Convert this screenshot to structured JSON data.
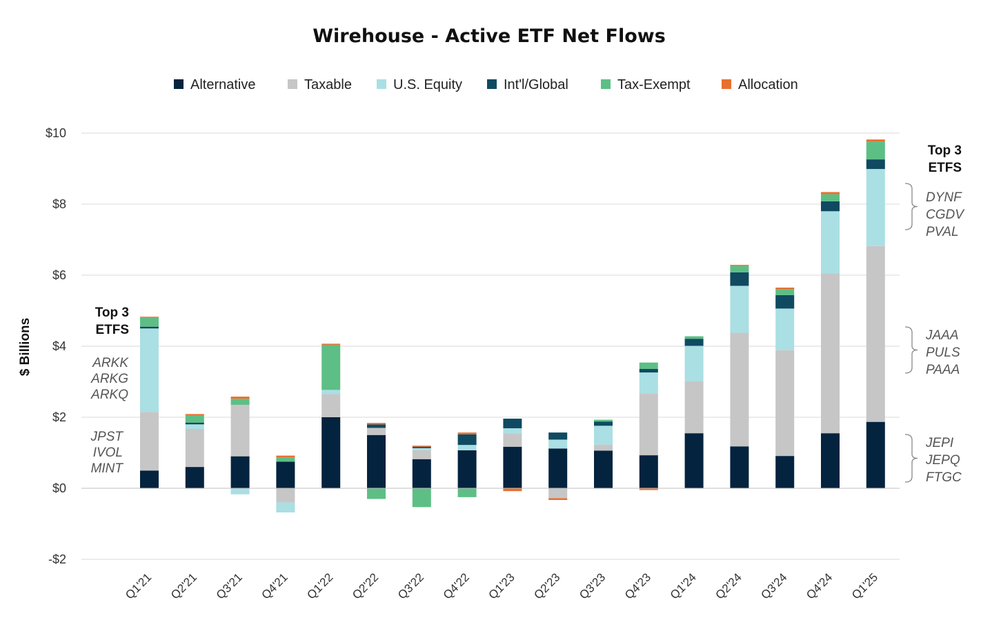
{
  "chart_data": {
    "type": "bar",
    "stacked": true,
    "title": "Wirehouse - Active ETF Net Flows",
    "ylabel": "$ Billions",
    "xlabel": "",
    "ylim": [
      -2,
      10
    ],
    "yticks": [
      -2,
      0,
      2,
      4,
      6,
      8,
      10
    ],
    "ytick_labels": [
      "-$2",
      "$0",
      "$2",
      "$4",
      "$6",
      "$8",
      "$10"
    ],
    "grid": true,
    "legend_position": "top",
    "categories": [
      "Q1'21",
      "Q2'21",
      "Q3'21",
      "Q4'21",
      "Q1'22",
      "Q2'22",
      "Q3'22",
      "Q4'22",
      "Q1'23",
      "Q2'23",
      "Q3'23",
      "Q4'23",
      "Q1'24",
      "Q2'24",
      "Q3'24",
      "Q4'24",
      "Q1'25"
    ],
    "series": [
      {
        "name": "Alternative",
        "color": "#04233e",
        "values": [
          0.5,
          0.6,
          0.9,
          0.75,
          2.0,
          1.5,
          0.82,
          1.07,
          1.17,
          1.12,
          1.06,
          0.93,
          1.55,
          1.18,
          0.91,
          1.55,
          1.87
        ]
      },
      {
        "name": "Taxable",
        "color": "#c6c6c6",
        "values": [
          1.65,
          1.07,
          1.45,
          -0.4,
          0.65,
          0.2,
          0.25,
          0.0,
          0.38,
          -0.28,
          0.17,
          1.73,
          1.46,
          3.2,
          2.98,
          4.5,
          4.95
        ]
      },
      {
        "name": "U.S. Equity",
        "color": "#aadfe4",
        "values": [
          2.35,
          0.13,
          -0.17,
          -0.28,
          0.12,
          0.0,
          0.06,
          0.15,
          0.14,
          0.25,
          0.53,
          0.6,
          1.0,
          1.32,
          1.17,
          1.75,
          2.17
        ]
      },
      {
        "name": "Int'l/Global",
        "color": "#0f4a61",
        "values": [
          0.05,
          0.05,
          0.0,
          0.0,
          0.0,
          0.1,
          0.04,
          0.3,
          0.27,
          0.2,
          0.12,
          0.1,
          0.2,
          0.38,
          0.38,
          0.28,
          0.27
        ]
      },
      {
        "name": "Tax-Exempt",
        "color": "#5dbf85",
        "values": [
          0.25,
          0.2,
          0.17,
          0.12,
          1.27,
          -0.3,
          -0.53,
          -0.25,
          0.0,
          0.0,
          0.05,
          0.18,
          0.07,
          0.18,
          0.17,
          0.2,
          0.5
        ]
      },
      {
        "name": "Allocation",
        "color": "#e8702f",
        "values": [
          0.03,
          0.04,
          0.06,
          0.05,
          0.03,
          0.04,
          0.03,
          0.05,
          -0.08,
          -0.05,
          0.0,
          -0.05,
          0.0,
          0.03,
          0.04,
          0.06,
          0.06
        ]
      }
    ],
    "annotations": {
      "left": {
        "heading": [
          "Top 3",
          "ETFS"
        ],
        "groups": [
          [
            "ARKK",
            "ARKG",
            "ARKQ"
          ],
          [
            "JPST",
            "IVOL",
            "MINT"
          ]
        ]
      },
      "right": {
        "heading": [
          "Top 3",
          "ETFS"
        ],
        "groups": [
          [
            "DYNF",
            "CGDV",
            "PVAL"
          ],
          [
            "JAAA",
            "PULS",
            "PAAA"
          ],
          [
            "JEPI",
            "JEPQ",
            "FTGC"
          ]
        ]
      }
    }
  }
}
